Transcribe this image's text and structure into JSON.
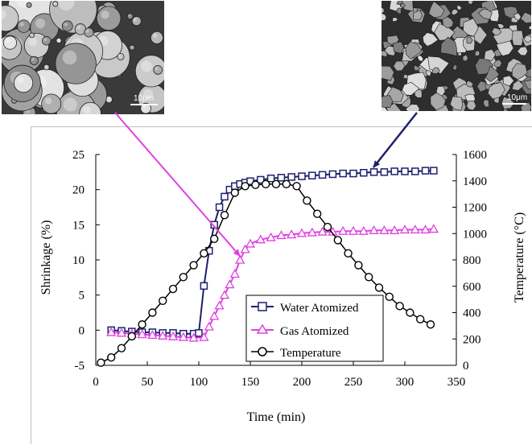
{
  "images": {
    "left": {
      "scale_label": "10μm",
      "depicts": "spherical-particles"
    },
    "right": {
      "scale_label": "10μm",
      "depicts": "irregular-particles"
    }
  },
  "colors": {
    "water": "#1f1f6e",
    "gas": "#e040e0",
    "temperature": "#000000",
    "arrow_left": "#e040e0",
    "arrow_right": "#1f1f6e"
  },
  "chart_data": {
    "type": "line",
    "xlabel": "Time (min)",
    "ylabel": "Shrinkage (%)",
    "y2label": "Temperature (°C)",
    "xlim": [
      0,
      350
    ],
    "ylim": [
      -5,
      25
    ],
    "y2lim": [
      0,
      1600
    ],
    "x_ticks": [
      "0",
      "50",
      "100",
      "150",
      "200",
      "250",
      "300",
      "350"
    ],
    "y_ticks": [
      "-5",
      "0",
      "5",
      "10",
      "15",
      "20",
      "25"
    ],
    "y2_ticks": [
      "0",
      "200",
      "400",
      "600",
      "800",
      "1000",
      "1200",
      "1400",
      "1600"
    ],
    "grid": false,
    "legend_position": "lower-center",
    "series": [
      {
        "name": "Water Atomized",
        "axis": "left",
        "marker": "square",
        "x": [
          15,
          25,
          35,
          45,
          55,
          65,
          75,
          85,
          95,
          100,
          105,
          110,
          115,
          120,
          125,
          130,
          135,
          140,
          145,
          150,
          160,
          170,
          180,
          190,
          200,
          210,
          220,
          230,
          240,
          250,
          260,
          270,
          280,
          290,
          300,
          310,
          320,
          328
        ],
        "y": [
          0,
          -0.1,
          -0.2,
          -0.3,
          -0.3,
          -0.4,
          -0.4,
          -0.5,
          -0.5,
          -0.4,
          6.3,
          11.3,
          15.0,
          17.5,
          19.0,
          20.0,
          20.5,
          20.8,
          21.0,
          21.2,
          21.4,
          21.6,
          21.7,
          21.8,
          21.9,
          22.0,
          22.1,
          22.2,
          22.3,
          22.3,
          22.4,
          22.5,
          22.5,
          22.6,
          22.6,
          22.6,
          22.7,
          22.7
        ]
      },
      {
        "name": "Gas Atomized",
        "axis": "left",
        "marker": "triangle",
        "x": [
          15,
          25,
          35,
          45,
          55,
          65,
          75,
          85,
          95,
          105,
          110,
          115,
          120,
          125,
          130,
          135,
          140,
          145,
          150,
          160,
          170,
          180,
          190,
          200,
          210,
          220,
          230,
          240,
          250,
          260,
          270,
          280,
          290,
          300,
          310,
          320,
          328
        ],
        "y": [
          -0.3,
          -0.4,
          -0.5,
          -0.6,
          -0.7,
          -0.8,
          -0.9,
          -1.0,
          -1.1,
          -1.0,
          0.5,
          2.0,
          3.5,
          5.0,
          6.5,
          8.0,
          10.0,
          11.5,
          12.3,
          12.9,
          13.2,
          13.5,
          13.6,
          13.8,
          13.9,
          14.0,
          14.0,
          14.1,
          14.1,
          14.1,
          14.2,
          14.2,
          14.2,
          14.3,
          14.3,
          14.3,
          14.4
        ]
      },
      {
        "name": "Temperature",
        "axis": "right",
        "marker": "circle",
        "x": [
          5,
          15,
          25,
          35,
          45,
          55,
          65,
          75,
          85,
          95,
          105,
          115,
          125,
          135,
          145,
          155,
          165,
          175,
          185,
          195,
          205,
          215,
          225,
          235,
          245,
          255,
          265,
          275,
          285,
          295,
          305,
          315,
          325
        ],
        "y": [
          20,
          60,
          130,
          220,
          310,
          400,
          490,
          580,
          670,
          760,
          850,
          960,
          1140,
          1310,
          1360,
          1370,
          1375,
          1375,
          1375,
          1360,
          1250,
          1150,
          1050,
          950,
          850,
          760,
          670,
          590,
          520,
          450,
          400,
          350,
          310
        ]
      }
    ]
  }
}
